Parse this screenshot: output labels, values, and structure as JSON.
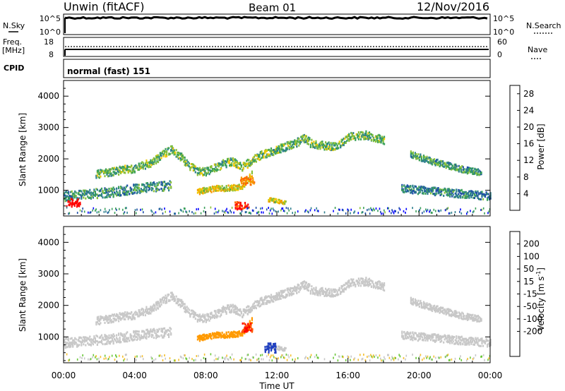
{
  "header": {
    "station": "Unwin (fitACF)",
    "beam": "Beam 01",
    "date": "12/Nov/2016"
  },
  "params": {
    "left_labels": {
      "nsky": "N.Sky",
      "freq": "Freq.",
      "freq_unit": "[MHz]",
      "cpid": "CPID"
    },
    "right_labels": {
      "nsearch": "N.Search",
      "nave": "Nave"
    },
    "nsky_ticks": [
      "10^5",
      "10^0"
    ],
    "nsearch_ticks": [
      "10^5",
      "10^0"
    ],
    "freq_ticks": [
      "18",
      "8"
    ],
    "nave_ticks": [
      "60",
      "0"
    ],
    "cpid_text": "normal (fast) 151"
  },
  "chart_data": [
    {
      "type": "heatmap",
      "panel": "power",
      "ylabel": "Slant Range [km]",
      "xlim": [
        0,
        24
      ],
      "ylim": [
        180,
        4500
      ],
      "yticks": [
        1000,
        2000,
        3000,
        4000
      ],
      "colorbar": {
        "label": "Power [dB]",
        "ticks": [
          "4",
          "8",
          "12",
          "16",
          "20",
          "24",
          "28"
        ],
        "range": [
          0,
          30
        ]
      },
      "echo_bands": [
        {
          "name": "main-band",
          "points": [
            [
              1.8,
              1500
            ],
            [
              3,
              1620
            ],
            [
              4,
              1700
            ],
            [
              5,
              1900
            ],
            [
              5.6,
              2150
            ],
            [
              6,
              2300
            ],
            [
              6.5,
              2100
            ],
            [
              7,
              1800
            ],
            [
              7.5,
              1580
            ],
            [
              8,
              1600
            ],
            [
              8.5,
              1700
            ],
            [
              9,
              1850
            ],
            [
              9.5,
              1900
            ],
            [
              10,
              1750
            ],
            [
              10.5,
              1900
            ],
            [
              11,
              2100
            ],
            [
              12,
              2300
            ],
            [
              13,
              2480
            ],
            [
              13.5,
              2650
            ],
            [
              14,
              2450
            ],
            [
              15,
              2400
            ],
            [
              15.5,
              2450
            ],
            [
              16,
              2700
            ],
            [
              17,
              2750
            ],
            [
              18,
              2600
            ]
          ],
          "width": 260,
          "power": 13
        },
        {
          "name": "near-range-band",
          "points": [
            [
              0,
              800
            ],
            [
              1,
              850
            ],
            [
              2,
              900
            ],
            [
              3,
              950
            ],
            [
              4,
              1050
            ],
            [
              5,
              1100
            ],
            [
              6,
              1150
            ]
          ],
          "width": 300,
          "power": 10
        },
        {
          "name": "afternoon-band",
          "points": [
            [
              7.5,
              950
            ],
            [
              8,
              1000
            ],
            [
              8.5,
              1050
            ],
            [
              9,
              1060
            ],
            [
              9.5,
              1080
            ],
            [
              10,
              1100
            ],
            [
              10.3,
              1300
            ],
            [
              10.6,
              1550
            ]
          ],
          "width": 180,
          "power": 18
        },
        {
          "name": "late-low-band",
          "points": [
            [
              19,
              1050
            ],
            [
              20,
              1000
            ],
            [
              21,
              950
            ],
            [
              22,
              900
            ],
            [
              23,
              850
            ],
            [
              24,
              800
            ]
          ],
          "width": 250,
          "power": 9
        },
        {
          "name": "late-high-band",
          "points": [
            [
              19.5,
              2150
            ],
            [
              20.5,
              1950
            ],
            [
              21.5,
              1800
            ],
            [
              22.5,
              1650
            ],
            [
              23.5,
              1550
            ]
          ],
          "width": 200,
          "power": 11
        },
        {
          "name": "spot-12ut",
          "points": [
            [
              11.5,
              700
            ],
            [
              12.5,
              600
            ]
          ],
          "width": 120,
          "power": 18
        }
      ],
      "hot_spots": [
        {
          "x": 0.5,
          "y": 600,
          "power": 29
        },
        {
          "x": 10.0,
          "y": 500,
          "power": 27
        },
        {
          "x": 10.3,
          "y": 1300,
          "power": 24
        }
      ]
    },
    {
      "type": "heatmap",
      "panel": "velocity",
      "ylabel": "Slant Range [km]",
      "xlabel": "Time UT",
      "xlim": [
        0,
        24
      ],
      "ylim": [
        180,
        4500
      ],
      "xticks": [
        "00:00",
        "04:00",
        "08:00",
        "12:00",
        "16:00",
        "20:00",
        "00:00"
      ],
      "yticks": [
        1000,
        2000,
        3000,
        4000
      ],
      "colorbar": {
        "label": "Velocity [m s",
        "label_exp": "-1",
        "ticks": [
          "200",
          "100",
          "50",
          "15",
          "-15",
          "-50",
          "-100",
          "-200"
        ]
      },
      "echo_bands": [
        {
          "name": "main-band",
          "velocity": 0
        },
        {
          "name": "afternoon-band",
          "velocity": -75
        },
        {
          "name": "feature-10ut",
          "velocity": -200,
          "x": 10.3,
          "y": 1300
        },
        {
          "name": "feature-12ut",
          "velocity": 120,
          "x": 11.6,
          "y": 650
        }
      ]
    }
  ],
  "colors": {
    "power_scale": [
      "#0000ff",
      "#1f4fa8",
      "#2e7f8e",
      "#3aa05a",
      "#88c03a",
      "#f0c800",
      "#f59a00",
      "#ff6600",
      "#ff0000"
    ],
    "velocity_scale": [
      "#ff0000",
      "#ff5a00",
      "#ff9a00",
      "#f5c030",
      "#c8c8c8",
      "#c8c8c8",
      "#6bc83a",
      "#2e8f5e",
      "#2040c0",
      "#0000b0"
    ]
  }
}
